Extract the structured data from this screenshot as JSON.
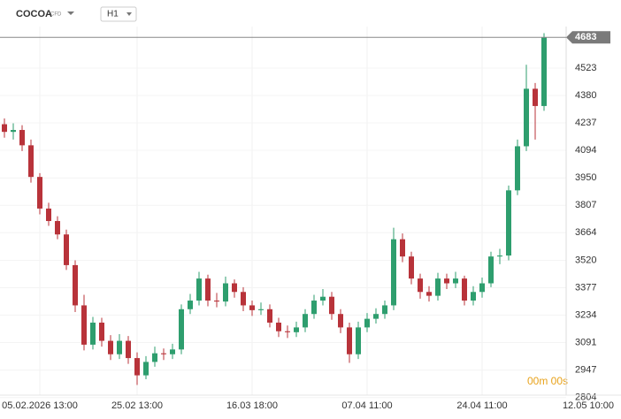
{
  "chart_data": {
    "type": "candlestick",
    "symbol": "COCOA",
    "symbol_type": "CFD",
    "timeframe": "H1",
    "timer": "00m 00s",
    "last_price": 4683,
    "up_color": "#2e9e6e",
    "down_color": "#b8333a",
    "open": [
      4230,
      4190,
      4200,
      4120,
      3955,
      3790,
      3725,
      3655,
      3495,
      3285,
      3080,
      3195,
      3100,
      3030,
      3100,
      3010,
      2920,
      2990,
      3035,
      3030,
      3055,
      3265,
      3310,
      3425,
      3310,
      3305,
      3400,
      3355,
      3285,
      3260,
      3265,
      3195,
      3150,
      3145,
      3170,
      3240,
      3310,
      3330,
      3240,
      3170,
      3030,
      3170,
      3215,
      3240,
      3285,
      3630,
      3540,
      3425,
      3355,
      3335,
      3425,
      3400,
      3425,
      3310,
      3355,
      3400,
      3540,
      3545,
      3885,
      4115,
      4415,
      4325
    ],
    "high": [
      4260,
      4235,
      4225,
      4150,
      3975,
      3820,
      3750,
      3680,
      3520,
      3340,
      3225,
      3220,
      3130,
      3135,
      3125,
      3040,
      3020,
      3070,
      3060,
      3085,
      3290,
      3345,
      3460,
      3445,
      3350,
      3435,
      3420,
      3380,
      3310,
      3300,
      3290,
      3220,
      3180,
      3200,
      3265,
      3340,
      3370,
      3355,
      3265,
      3195,
      3200,
      3245,
      3270,
      3310,
      3690,
      3660,
      3565,
      3450,
      3385,
      3455,
      3450,
      3460,
      3440,
      3385,
      3430,
      3565,
      3580,
      3910,
      4150,
      4540,
      4445,
      4705
    ],
    "low": [
      4160,
      4150,
      4090,
      3925,
      3760,
      3700,
      3630,
      3470,
      3250,
      3050,
      3055,
      3070,
      3000,
      3005,
      2980,
      2870,
      2900,
      2965,
      3000,
      3005,
      3030,
      3240,
      3285,
      3280,
      3275,
      3280,
      3325,
      3255,
      3230,
      3235,
      3170,
      3120,
      3115,
      3120,
      3145,
      3215,
      3285,
      3210,
      3140,
      2985,
      3005,
      3145,
      3190,
      3215,
      3260,
      3510,
      3395,
      3320,
      3305,
      3310,
      3370,
      3375,
      3285,
      3285,
      3325,
      3380,
      3500,
      3520,
      3860,
      4090,
      4150,
      4300
    ],
    "close": [
      4190,
      4200,
      4120,
      3955,
      3790,
      3725,
      3655,
      3495,
      3285,
      3080,
      3195,
      3100,
      3030,
      3100,
      3010,
      2920,
      2990,
      3035,
      3030,
      3055,
      3265,
      3310,
      3425,
      3310,
      3305,
      3400,
      3355,
      3285,
      3260,
      3265,
      3195,
      3150,
      3145,
      3170,
      3240,
      3310,
      3330,
      3240,
      3170,
      3030,
      3170,
      3215,
      3240,
      3285,
      3630,
      3540,
      3425,
      3355,
      3335,
      3425,
      3400,
      3425,
      3310,
      3355,
      3400,
      3540,
      3545,
      3885,
      4115,
      4415,
      4325,
      4683
    ],
    "xlim": [
      -0.5,
      69.7
    ],
    "xticks": [
      {
        "value": 4,
        "label": "05.02.2026 13:00"
      },
      {
        "value": 15,
        "label": "25.02 13:00"
      },
      {
        "value": 28,
        "label": "16.03 18:00"
      },
      {
        "value": 41,
        "label": "07.04 11:00"
      },
      {
        "value": 54,
        "label": "24.04 11:00"
      },
      {
        "value": 66,
        "label": "12.05 10:00"
      }
    ],
    "ylim": [
      2766,
      4878
    ],
    "yticks": [
      2804,
      2947,
      3091,
      3234,
      3377,
      3520,
      3664,
      3807,
      3950,
      4094,
      4237,
      4380,
      4523
    ],
    "grid": true
  }
}
